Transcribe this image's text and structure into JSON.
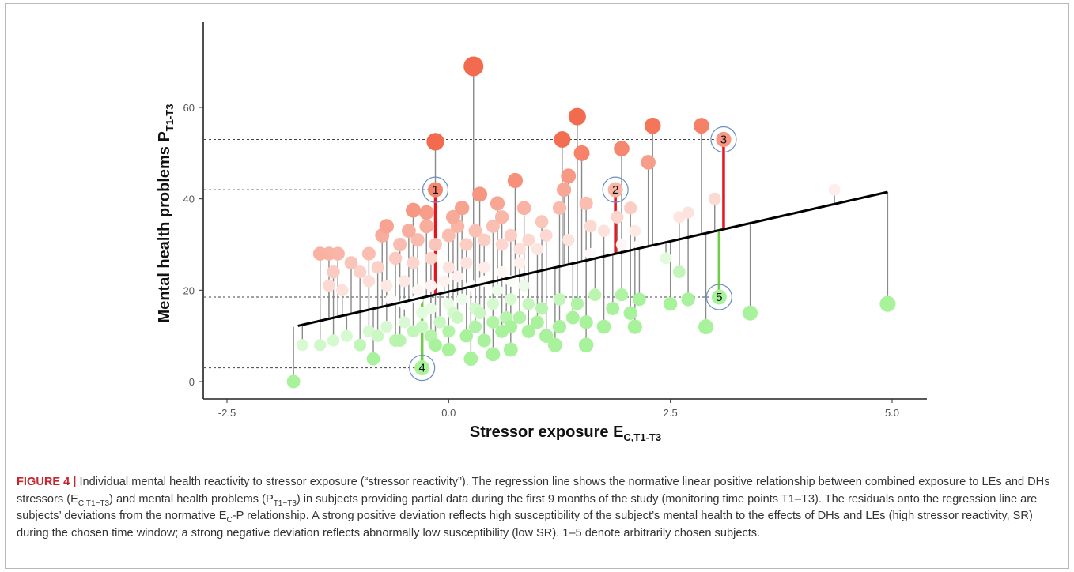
{
  "caption": {
    "label": "FIGURE 4 |",
    "seg1": " Individual mental health reactivity to stressor exposure (“stressor reactivity”). The regression line shows the normative linear positive relationship between combined exposure to LEs and DHs stressors (E",
    "sub1": "C,T1−T3",
    "seg2": ") and mental health problems (P",
    "sub2": "T1−T3",
    "seg3": ") in subjects providing partial data during the first 9 months of the study (monitoring time points T1–T3). The residuals onto the regression line are subjects’ deviations from the normative E",
    "sub3": "C",
    "seg4": "-P relationship. A strong positive deviation reflects high susceptibility of the subject’s mental health to the effects of DHs and LEs (high stressor reactivity, SR) during the chosen time window; a strong negative deviation reflects abnormally low susceptibility (low SR). 1–5 denote arbitrarily chosen subjects."
  },
  "chart_data": {
    "type": "scatter",
    "xlabel_main": "Stressor exposure E",
    "xlabel_sub": "C,T1-T3",
    "ylabel_main": "Mental health problems P",
    "ylabel_sub": "T1-T3",
    "x_ticks": [
      "-2.5",
      "0.0",
      "2.5",
      "5.0"
    ],
    "y_ticks": [
      "0",
      "20",
      "40",
      "60"
    ],
    "xlim": [
      -2.6,
      5.3
    ],
    "ylim": [
      -1,
      78
    ],
    "regression": {
      "x0": -1.7,
      "y0": 12.2,
      "x1": 4.95,
      "y1": 41.5
    },
    "colors": {
      "high": "#f36b4e",
      "low": "#a9f29c",
      "mid": "#ffffff",
      "positive_residual": "#e8141b",
      "negative_residual": "#6fce45",
      "residual": "#8a8a8a",
      "circle": "#6b8fc2"
    },
    "reference_lines_y": [
      53,
      42,
      18.5,
      3
    ],
    "highlighted_subjects": [
      {
        "label": "1",
        "x": -0.15,
        "y": 42,
        "sign": "positive"
      },
      {
        "label": "2",
        "x": 1.88,
        "y": 42,
        "sign": "positive"
      },
      {
        "label": "3",
        "x": 3.1,
        "y": 53,
        "sign": "positive"
      },
      {
        "label": "4",
        "x": -0.3,
        "y": 3,
        "sign": "negative"
      },
      {
        "label": "5",
        "x": 3.05,
        "y": 18.5,
        "sign": "negative"
      }
    ],
    "points": [
      [
        0.28,
        69
      ],
      [
        -0.15,
        52.5
      ],
      [
        1.28,
        53
      ],
      [
        1.45,
        58
      ],
      [
        1.5,
        50
      ],
      [
        2.3,
        56
      ],
      [
        2.85,
        56
      ],
      [
        3.1,
        53
      ],
      [
        1.95,
        51
      ],
      [
        2.25,
        48
      ],
      [
        1.35,
        45
      ],
      [
        0.75,
        44
      ],
      [
        0.35,
        41
      ],
      [
        0.55,
        39
      ],
      [
        0.15,
        38
      ],
      [
        -0.25,
        37
      ],
      [
        -0.4,
        37.5
      ],
      [
        0.05,
        36
      ],
      [
        0.6,
        36
      ],
      [
        0.85,
        38
      ],
      [
        1.05,
        35
      ],
      [
        1.3,
        42
      ],
      [
        1.55,
        39
      ],
      [
        1.9,
        36
      ],
      [
        2.1,
        33
      ],
      [
        2.05,
        38
      ],
      [
        2.6,
        36
      ],
      [
        2.7,
        37
      ],
      [
        3.0,
        40
      ],
      [
        4.35,
        42
      ],
      [
        1.6,
        34
      ],
      [
        1.25,
        38
      ],
      [
        -1.45,
        28
      ],
      [
        -1.35,
        28
      ],
      [
        -1.25,
        28
      ],
      [
        -1.1,
        26
      ],
      [
        -0.9,
        28
      ],
      [
        -0.75,
        32
      ],
      [
        -0.7,
        34
      ],
      [
        -0.55,
        30
      ],
      [
        -0.45,
        33
      ],
      [
        -0.35,
        31
      ],
      [
        -0.25,
        34
      ],
      [
        -0.15,
        30
      ],
      [
        0.0,
        32
      ],
      [
        0.1,
        34
      ],
      [
        0.2,
        30
      ],
      [
        0.3,
        33
      ],
      [
        0.4,
        31
      ],
      [
        0.5,
        34
      ],
      [
        0.6,
        30
      ],
      [
        0.7,
        32
      ],
      [
        0.8,
        29
      ],
      [
        0.9,
        31
      ],
      [
        1.0,
        29
      ],
      [
        1.1,
        32
      ],
      [
        1.35,
        31
      ],
      [
        1.6,
        28
      ],
      [
        1.75,
        33
      ],
      [
        1.95,
        30
      ],
      [
        2.15,
        30
      ],
      [
        2.45,
        27
      ],
      [
        2.6,
        24
      ],
      [
        -1.0,
        24
      ],
      [
        -0.8,
        25
      ],
      [
        -0.6,
        27
      ],
      [
        -0.4,
        26
      ],
      [
        -0.2,
        27
      ],
      [
        0.0,
        25
      ],
      [
        0.2,
        26
      ],
      [
        0.4,
        25
      ],
      [
        0.6,
        24
      ],
      [
        0.8,
        26
      ],
      [
        -1.3,
        24
      ],
      [
        -1.35,
        21
      ],
      [
        -1.2,
        20
      ],
      [
        -0.9,
        22
      ],
      [
        -0.7,
        21
      ],
      [
        -0.5,
        22
      ],
      [
        -0.35,
        20
      ],
      [
        -0.2,
        21
      ],
      [
        -0.05,
        22
      ],
      [
        0.1,
        23
      ],
      [
        0.25,
        21
      ],
      [
        0.4,
        22
      ],
      [
        0.55,
        20
      ],
      [
        0.7,
        22
      ],
      [
        0.85,
        21
      ],
      [
        -0.65,
        18
      ],
      [
        -0.5,
        17
      ],
      [
        -0.35,
        18
      ],
      [
        -0.2,
        16
      ],
      [
        0.0,
        17
      ],
      [
        0.15,
        18
      ],
      [
        0.3,
        16
      ],
      [
        0.5,
        17
      ],
      [
        0.7,
        18
      ],
      [
        0.9,
        17
      ],
      [
        1.05,
        16
      ],
      [
        1.25,
        18
      ],
      [
        1.45,
        17
      ],
      [
        1.65,
        19
      ],
      [
        1.85,
        16
      ],
      [
        1.95,
        19
      ],
      [
        2.15,
        18
      ],
      [
        2.5,
        17
      ],
      [
        2.7,
        18
      ],
      [
        -1.65,
        8
      ],
      [
        -1.45,
        8
      ],
      [
        -1.3,
        9
      ],
      [
        -1.15,
        10
      ],
      [
        -1.0,
        8
      ],
      [
        -0.9,
        11
      ],
      [
        -0.8,
        10
      ],
      [
        -0.7,
        12
      ],
      [
        -0.6,
        9
      ],
      [
        -0.5,
        13
      ],
      [
        -0.4,
        11
      ],
      [
        -0.3,
        12
      ],
      [
        -0.2,
        10
      ],
      [
        -0.1,
        13
      ],
      [
        0.0,
        11
      ],
      [
        0.1,
        14
      ],
      [
        0.2,
        10
      ],
      [
        0.3,
        12
      ],
      [
        0.4,
        9
      ],
      [
        0.5,
        13
      ],
      [
        0.6,
        11
      ],
      [
        0.7,
        12
      ],
      [
        0.8,
        14
      ],
      [
        0.9,
        11
      ],
      [
        1.0,
        13
      ],
      [
        1.1,
        10
      ],
      [
        1.25,
        12
      ],
      [
        1.4,
        14
      ],
      [
        1.55,
        13
      ],
      [
        -0.85,
        5
      ],
      [
        -0.15,
        8
      ],
      [
        0.25,
        5
      ],
      [
        0.5,
        6
      ],
      [
        0.7,
        7
      ],
      [
        1.2,
        8
      ],
      [
        1.55,
        8
      ],
      [
        2.1,
        12
      ],
      [
        2.05,
        15
      ],
      [
        2.9,
        12
      ],
      [
        3.4,
        15
      ],
      [
        4.95,
        17
      ],
      [
        -1.75,
        0
      ],
      [
        -0.55,
        9
      ],
      [
        -0.3,
        15
      ],
      [
        0.05,
        15
      ],
      [
        0.35,
        15
      ],
      [
        0.65,
        14
      ],
      [
        1.75,
        12
      ],
      [
        0.0,
        7
      ]
    ]
  }
}
